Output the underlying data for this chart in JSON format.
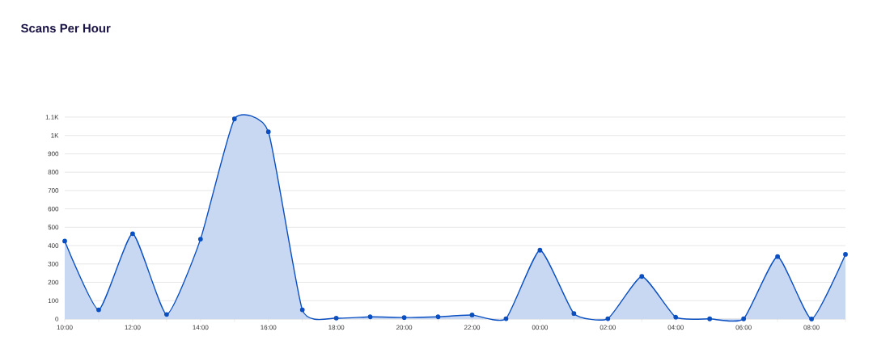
{
  "chart_data": {
    "type": "area",
    "title": "Scans Per Hour",
    "categories": [
      "10:00",
      null,
      "12:00",
      null,
      "14:00",
      null,
      "16:00",
      null,
      "18:00",
      null,
      "20:00",
      null,
      "22:00",
      null,
      "00:00",
      null,
      "02:00",
      null,
      "04:00",
      null,
      "06:00",
      null,
      "08:00",
      null
    ],
    "values": [
      425,
      50,
      465,
      25,
      435,
      1090,
      1020,
      50,
      5,
      12,
      8,
      12,
      22,
      2,
      375,
      30,
      2,
      232,
      10,
      1,
      1,
      340,
      0,
      352
    ],
    "color": "#0a4fc2",
    "ylim": [
      0,
      1100
    ],
    "yticks": [
      0,
      100,
      200,
      300,
      400,
      500,
      600,
      700,
      800,
      900,
      {
        "value": 1000,
        "label": "1K"
      },
      {
        "value": 1100,
        "label": "1.1K"
      }
    ],
    "grid": "y",
    "marker": "circle",
    "line_style": "solid"
  }
}
